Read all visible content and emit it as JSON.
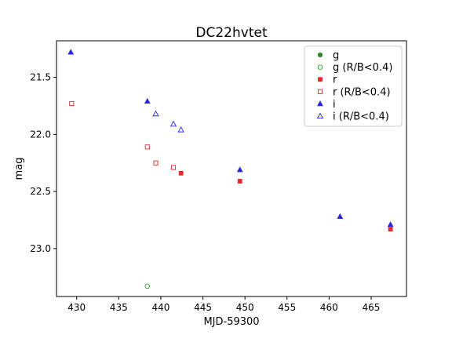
{
  "chart_data": {
    "type": "scatter",
    "title": "DC22hvtet",
    "xlabel": "MJD-59300",
    "ylabel": "mag",
    "xlim": [
      427.6,
      469.2
    ],
    "ylim": [
      23.42,
      21.18
    ],
    "y_inverted": true,
    "x_ticks": [
      430,
      435,
      440,
      445,
      450,
      455,
      460,
      465
    ],
    "y_ticks": [
      21.5,
      22.0,
      22.5,
      23.0
    ],
    "legend_position": "top-right",
    "series": [
      {
        "name": "g",
        "color": "#2e8b2e",
        "marker": "circle",
        "filled": true,
        "points": []
      },
      {
        "name": "g (R/B<0.4)",
        "color": "#2ca02c",
        "marker": "circle",
        "filled": false,
        "points": [
          {
            "x": 438.4,
            "y": 23.33
          }
        ]
      },
      {
        "name": "r",
        "color": "#e8282d",
        "marker": "square",
        "filled": true,
        "points": [
          {
            "x": 442.4,
            "y": 22.34
          },
          {
            "x": 449.4,
            "y": 22.41
          },
          {
            "x": 467.3,
            "y": 22.83
          }
        ]
      },
      {
        "name": "r (R/B<0.4)",
        "color": "#d62728",
        "marker": "square",
        "filled": false,
        "points": [
          {
            "x": 429.4,
            "y": 21.73
          },
          {
            "x": 438.4,
            "y": 22.11
          },
          {
            "x": 439.4,
            "y": 22.25
          },
          {
            "x": 441.5,
            "y": 22.29
          }
        ]
      },
      {
        "name": "i",
        "color": "#2727e6",
        "marker": "triangle",
        "filled": true,
        "points": [
          {
            "x": 429.3,
            "y": 21.28
          },
          {
            "x": 438.4,
            "y": 21.71
          },
          {
            "x": 449.4,
            "y": 22.31
          },
          {
            "x": 461.3,
            "y": 22.72
          },
          {
            "x": 467.3,
            "y": 22.79
          }
        ]
      },
      {
        "name": "i (R/B<0.4)",
        "color": "#2727e6",
        "marker": "triangle",
        "filled": false,
        "points": [
          {
            "x": 439.4,
            "y": 21.82
          },
          {
            "x": 441.5,
            "y": 21.91
          },
          {
            "x": 442.4,
            "y": 21.96
          }
        ]
      }
    ]
  }
}
